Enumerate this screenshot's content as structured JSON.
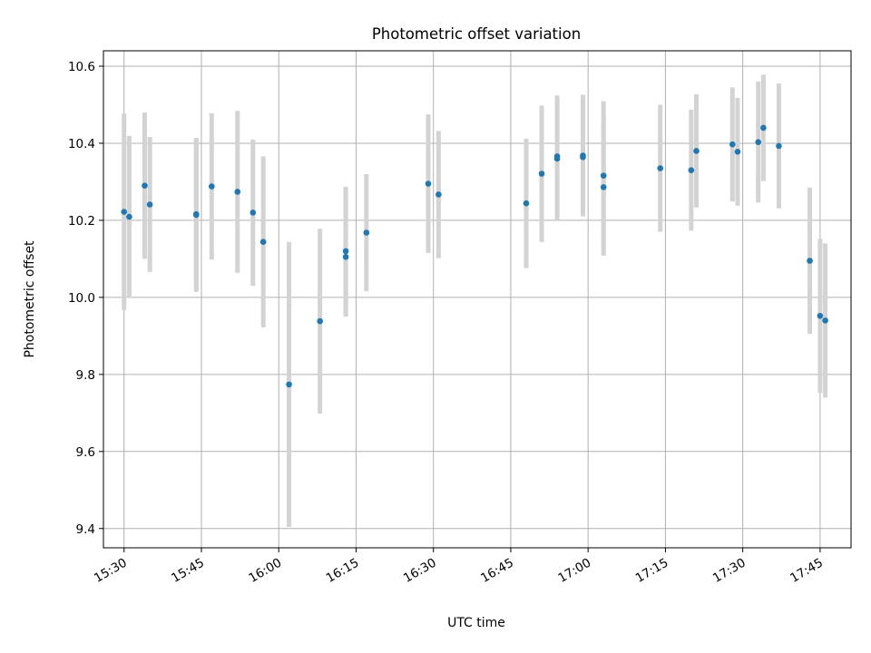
{
  "chart_data": {
    "type": "scatter",
    "title": "Photometric offset variation",
    "xlabel": "UTC time",
    "ylabel": "Photometric offset",
    "x_ticks": [
      "15:30",
      "15:45",
      "16:00",
      "16:15",
      "16:30",
      "16:45",
      "17:00",
      "17:15",
      "17:30",
      "17:45"
    ],
    "y_ticks": [
      "9.4",
      "9.6",
      "9.8",
      "10.0",
      "10.2",
      "10.4",
      "10.6"
    ],
    "xlim": [
      "15:26",
      "17:51"
    ],
    "ylim": [
      9.35,
      10.64
    ],
    "grid": true,
    "points": [
      {
        "t": "15:30",
        "y": 10.222,
        "err": 0.255
      },
      {
        "t": "15:31",
        "y": 10.209,
        "err": 0.21
      },
      {
        "t": "15:34",
        "y": 10.29,
        "err": 0.19
      },
      {
        "t": "15:35",
        "y": 10.241,
        "err": 0.175
      },
      {
        "t": "15:44",
        "y": 10.214,
        "err": 0.2
      },
      {
        "t": "15:44",
        "y": 10.216,
        "err": 0.195
      },
      {
        "t": "15:47",
        "y": 10.288,
        "err": 0.19
      },
      {
        "t": "15:52",
        "y": 10.274,
        "err": 0.21
      },
      {
        "t": "15:55",
        "y": 10.22,
        "err": 0.19
      },
      {
        "t": "15:57",
        "y": 10.144,
        "err": 0.222
      },
      {
        "t": "16:02",
        "y": 9.774,
        "err": 0.37
      },
      {
        "t": "16:08",
        "y": 9.938,
        "err": 0.24
      },
      {
        "t": "16:13",
        "y": 10.12,
        "err": 0.167
      },
      {
        "t": "16:13",
        "y": 10.105,
        "err": 0.155
      },
      {
        "t": "16:17",
        "y": 10.168,
        "err": 0.152
      },
      {
        "t": "16:29",
        "y": 10.295,
        "err": 0.18
      },
      {
        "t": "16:31",
        "y": 10.267,
        "err": 0.165
      },
      {
        "t": "16:48",
        "y": 10.244,
        "err": 0.168
      },
      {
        "t": "16:51",
        "y": 10.321,
        "err": 0.177
      },
      {
        "t": "16:54",
        "y": 10.366,
        "err": 0.158
      },
      {
        "t": "16:54",
        "y": 10.36,
        "err": 0.158
      },
      {
        "t": "16:59",
        "y": 10.368,
        "err": 0.158
      },
      {
        "t": "16:59",
        "y": 10.364,
        "err": 0.152
      },
      {
        "t": "17:03",
        "y": 10.316,
        "err": 0.193
      },
      {
        "t": "17:03",
        "y": 10.286,
        "err": 0.178
      },
      {
        "t": "17:14",
        "y": 10.335,
        "err": 0.165
      },
      {
        "t": "17:20",
        "y": 10.33,
        "err": 0.157
      },
      {
        "t": "17:21",
        "y": 10.38,
        "err": 0.147
      },
      {
        "t": "17:28",
        "y": 10.397,
        "err": 0.148
      },
      {
        "t": "17:29",
        "y": 10.378,
        "err": 0.14
      },
      {
        "t": "17:33",
        "y": 10.403,
        "err": 0.157
      },
      {
        "t": "17:34",
        "y": 10.44,
        "err": 0.138
      },
      {
        "t": "17:37",
        "y": 10.393,
        "err": 0.162
      },
      {
        "t": "17:43",
        "y": 10.095,
        "err": 0.19
      },
      {
        "t": "17:45",
        "y": 9.952,
        "err": 0.2
      },
      {
        "t": "17:46",
        "y": 9.94,
        "err": 0.2
      }
    ],
    "marker_color": "#1f77b4",
    "errorbar_color": "#d3d3d3",
    "grid_color": "#b0b0b0"
  }
}
